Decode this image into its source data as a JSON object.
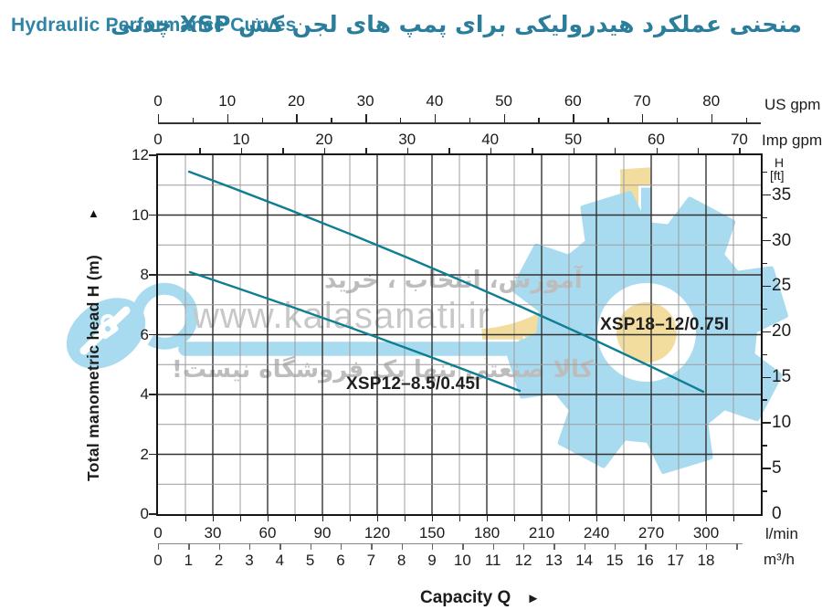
{
  "header": {
    "title_en": "Hydraulic Performance Curves",
    "title_fa": "منحنی عملکرد هیدرولیکی برای پمپ های لجن کش XSP چدنی"
  },
  "axes": {
    "us_gpm": {
      "unit": "US gpm",
      "labels": [
        0,
        10,
        20,
        30,
        40,
        50,
        60,
        70,
        80
      ]
    },
    "imp_gpm": {
      "unit": "Imp gpm",
      "labels": [
        0,
        10,
        20,
        30,
        40,
        50,
        60,
        70
      ]
    },
    "lmin": {
      "unit": "l/min",
      "labels": [
        0,
        30,
        60,
        90,
        120,
        150,
        180,
        210,
        240,
        270,
        300
      ]
    },
    "m3h": {
      "unit": "m³/h",
      "labels": [
        0,
        1,
        2,
        3,
        4,
        5,
        6,
        7,
        8,
        9,
        10,
        11,
        12,
        13,
        14,
        15,
        16,
        17,
        18
      ]
    },
    "head_m": {
      "title": "Total manometric head H (m)",
      "arrow": "▲",
      "labels": [
        0,
        2,
        4,
        6,
        8,
        10,
        12
      ]
    },
    "head_ft": {
      "unit_line1": "H",
      "unit_line2": "[ft]",
      "labels": [
        0,
        5,
        10,
        15,
        20,
        25,
        30,
        35
      ]
    },
    "capacity": {
      "label": "Capacity Q",
      "arrow": "►"
    }
  },
  "curves": [
    {
      "label": "XSP18–12/0.75I"
    },
    {
      "label": "XSP12–8.5/0.45I"
    }
  ],
  "watermark": {
    "line_top": "آموزش، انتخاب ، خرید",
    "url": "www.kalasanati.ir",
    "line_bottom": "کالا صنعتی تنها یک فروشگاه نیست!"
  },
  "colors": {
    "accent_teal": "#2e84a4",
    "curve_teal": "#0e7e92",
    "watermark_blue": "#a9dbf0",
    "watermark_yellow": "#f2dd9f",
    "grid_dark": "#323232",
    "grid_gray": "#9c9c9c"
  },
  "chart_data": {
    "type": "line",
    "title": "Hydraulic Performance Curves",
    "xlabel": "Capacity Q",
    "ylabel": "Total manometric head H (m)",
    "x_units": [
      {
        "unit": "l/min",
        "range": [
          0,
          330
        ],
        "ticks": [
          0,
          30,
          60,
          90,
          120,
          150,
          180,
          210,
          240,
          270,
          300
        ]
      },
      {
        "unit": "m³/h",
        "range": [
          0,
          18
        ],
        "ticks": [
          0,
          1,
          2,
          3,
          4,
          5,
          6,
          7,
          8,
          9,
          10,
          11,
          12,
          13,
          14,
          15,
          16,
          17,
          18
        ]
      },
      {
        "unit": "US gpm",
        "range": [
          0,
          87
        ],
        "ticks": [
          0,
          10,
          20,
          30,
          40,
          50,
          60,
          70,
          80
        ]
      },
      {
        "unit": "Imp gpm",
        "range": [
          0,
          72
        ],
        "ticks": [
          0,
          10,
          20,
          30,
          40,
          50,
          60,
          70
        ]
      }
    ],
    "y_units": [
      {
        "unit": "m",
        "range": [
          0,
          12
        ],
        "ticks": [
          0,
          2,
          4,
          6,
          8,
          10,
          12
        ]
      },
      {
        "unit": "ft",
        "range": [
          0,
          39
        ],
        "ticks": [
          0,
          5,
          10,
          15,
          20,
          25,
          30,
          35
        ]
      }
    ],
    "grid": true,
    "legend_position": "inline-labels",
    "series": [
      {
        "name": "XSP18–12/0.75I",
        "points_Q_lmin_H_m": [
          [
            17,
            11.5
          ],
          [
            60,
            10.5
          ],
          [
            100,
            9.5
          ],
          [
            140,
            8.5
          ],
          [
            183,
            7.4
          ],
          [
            220,
            6.4
          ],
          [
            260,
            5.3
          ],
          [
            298,
            4.1
          ]
        ]
      },
      {
        "name": "XSP12–8.5/0.45I",
        "points_Q_lmin_H_m": [
          [
            18,
            8.1
          ],
          [
            60,
            7.2
          ],
          [
            100,
            6.4
          ],
          [
            140,
            5.5
          ],
          [
            180,
            4.5
          ],
          [
            198,
            4.1
          ]
        ]
      }
    ]
  }
}
